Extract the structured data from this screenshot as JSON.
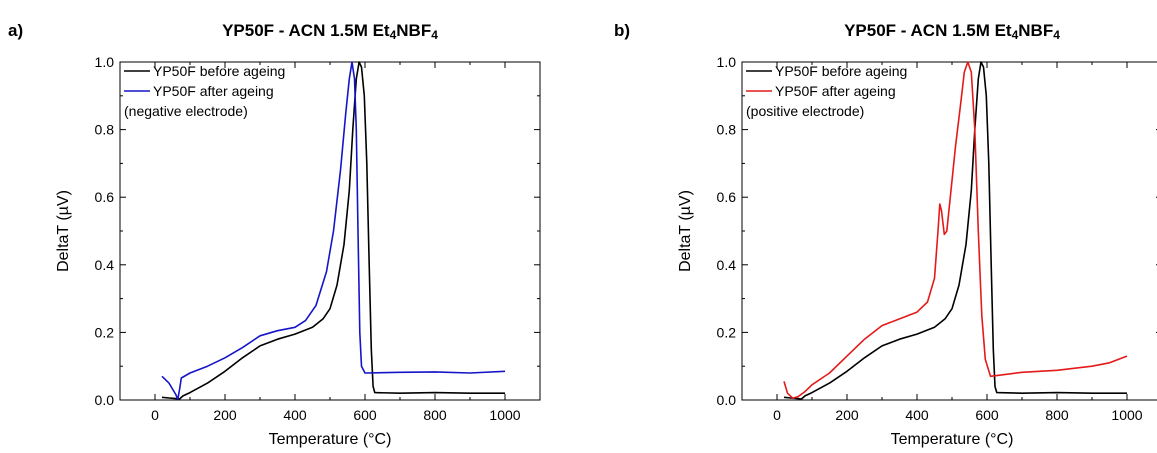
{
  "chart_data": [
    {
      "type": "line",
      "panel_label": "a)",
      "title": "YP50F - ACN 1.5M Et4NBF4",
      "title_parts": [
        {
          "text": "YP50F - ACN 1.5M Et",
          "sub": false
        },
        {
          "text": "4",
          "sub": true
        },
        {
          "text": "NBF",
          "sub": false
        },
        {
          "text": "4",
          "sub": true
        }
      ],
      "xlabel": "Temperature (°C)",
      "ylabel": "DeltaT (µV)",
      "xlim": [
        -100,
        1100
      ],
      "ylim": [
        0,
        1.0
      ],
      "xticks": [
        0,
        200,
        400,
        600,
        800,
        1000
      ],
      "yticks": [
        0.0,
        0.2,
        0.4,
        0.6,
        0.8,
        1.0
      ],
      "ytick_labels": [
        "0.0",
        "0.2",
        "0.4",
        "0.6",
        "0.8",
        "1.0"
      ],
      "legend_position": "top-left",
      "legend_note": "(negative electrode)",
      "grid": false,
      "series": [
        {
          "name": "YP50F before ageing",
          "color": "#000000",
          "points": [
            [
              20,
              0.008
            ],
            [
              40,
              0.006
            ],
            [
              60,
              0.004
            ],
            [
              70,
              0.003
            ],
            [
              80,
              0.012
            ],
            [
              100,
              0.022
            ],
            [
              150,
              0.05
            ],
            [
              200,
              0.085
            ],
            [
              250,
              0.125
            ],
            [
              300,
              0.16
            ],
            [
              350,
              0.18
            ],
            [
              400,
              0.195
            ],
            [
              450,
              0.215
            ],
            [
              480,
              0.24
            ],
            [
              500,
              0.27
            ],
            [
              520,
              0.34
            ],
            [
              540,
              0.46
            ],
            [
              555,
              0.62
            ],
            [
              565,
              0.8
            ],
            [
              575,
              0.95
            ],
            [
              583,
              1.0
            ],
            [
              590,
              0.985
            ],
            [
              598,
              0.9
            ],
            [
              605,
              0.7
            ],
            [
              612,
              0.4
            ],
            [
              618,
              0.15
            ],
            [
              623,
              0.04
            ],
            [
              628,
              0.022
            ],
            [
              700,
              0.02
            ],
            [
              800,
              0.022
            ],
            [
              900,
              0.02
            ],
            [
              1000,
              0.02
            ]
          ]
        },
        {
          "name": "YP50F after ageing",
          "color": "#1515c8",
          "points": [
            [
              20,
              0.07
            ],
            [
              40,
              0.05
            ],
            [
              60,
              0.015
            ],
            [
              65,
              0.002
            ],
            [
              70,
              0.03
            ],
            [
              75,
              0.065
            ],
            [
              100,
              0.08
            ],
            [
              150,
              0.1
            ],
            [
              200,
              0.125
            ],
            [
              250,
              0.155
            ],
            [
              300,
              0.19
            ],
            [
              350,
              0.205
            ],
            [
              400,
              0.215
            ],
            [
              430,
              0.235
            ],
            [
              460,
              0.28
            ],
            [
              490,
              0.38
            ],
            [
              510,
              0.5
            ],
            [
              530,
              0.68
            ],
            [
              545,
              0.85
            ],
            [
              555,
              0.95
            ],
            [
              563,
              1.0
            ],
            [
              570,
              0.95
            ],
            [
              575,
              0.8
            ],
            [
              580,
              0.5
            ],
            [
              585,
              0.2
            ],
            [
              590,
              0.1
            ],
            [
              600,
              0.08
            ],
            [
              700,
              0.082
            ],
            [
              800,
              0.083
            ],
            [
              900,
              0.08
            ],
            [
              1000,
              0.085
            ]
          ]
        }
      ]
    },
    {
      "type": "line",
      "panel_label": "b)",
      "title": "YP50F - ACN 1.5M Et4NBF4",
      "title_parts": [
        {
          "text": "YP50F - ACN 1.5M Et",
          "sub": false
        },
        {
          "text": "4",
          "sub": true
        },
        {
          "text": "NBF",
          "sub": false
        },
        {
          "text": "4",
          "sub": true
        }
      ],
      "xlabel": "Temperature (°C)",
      "ylabel": "DeltaT (µV)",
      "xlim": [
        -100,
        1100
      ],
      "ylim": [
        0,
        1.0
      ],
      "xticks": [
        0,
        200,
        400,
        600,
        800,
        1000
      ],
      "yticks": [
        0.0,
        0.2,
        0.4,
        0.6,
        0.8,
        1.0
      ],
      "ytick_labels": [
        "0.0",
        "0.2",
        "0.4",
        "0.6",
        "0.8",
        "1.0"
      ],
      "legend_position": "top-left",
      "legend_note": "(positive electrode)",
      "grid": false,
      "series": [
        {
          "name": "YP50F before ageing",
          "color": "#000000",
          "points": [
            [
              20,
              0.008
            ],
            [
              40,
              0.006
            ],
            [
              60,
              0.004
            ],
            [
              70,
              0.003
            ],
            [
              80,
              0.012
            ],
            [
              100,
              0.022
            ],
            [
              150,
              0.05
            ],
            [
              200,
              0.085
            ],
            [
              250,
              0.125
            ],
            [
              300,
              0.16
            ],
            [
              350,
              0.18
            ],
            [
              400,
              0.195
            ],
            [
              450,
              0.215
            ],
            [
              480,
              0.24
            ],
            [
              500,
              0.27
            ],
            [
              520,
              0.34
            ],
            [
              540,
              0.46
            ],
            [
              555,
              0.62
            ],
            [
              565,
              0.8
            ],
            [
              575,
              0.95
            ],
            [
              583,
              1.0
            ],
            [
              590,
              0.985
            ],
            [
              598,
              0.9
            ],
            [
              605,
              0.7
            ],
            [
              612,
              0.4
            ],
            [
              618,
              0.15
            ],
            [
              623,
              0.04
            ],
            [
              628,
              0.022
            ],
            [
              700,
              0.02
            ],
            [
              800,
              0.022
            ],
            [
              900,
              0.02
            ],
            [
              1000,
              0.02
            ]
          ]
        },
        {
          "name": "YP50F after ageing",
          "color": "#e41a1a",
          "points": [
            [
              20,
              0.055
            ],
            [
              30,
              0.02
            ],
            [
              45,
              0.005
            ],
            [
              60,
              0.01
            ],
            [
              80,
              0.025
            ],
            [
              100,
              0.045
            ],
            [
              150,
              0.08
            ],
            [
              200,
              0.13
            ],
            [
              250,
              0.18
            ],
            [
              300,
              0.22
            ],
            [
              350,
              0.24
            ],
            [
              400,
              0.26
            ],
            [
              430,
              0.29
            ],
            [
              450,
              0.36
            ],
            [
              460,
              0.5
            ],
            [
              465,
              0.58
            ],
            [
              470,
              0.56
            ],
            [
              478,
              0.49
            ],
            [
              485,
              0.5
            ],
            [
              495,
              0.6
            ],
            [
              510,
              0.75
            ],
            [
              525,
              0.88
            ],
            [
              535,
              0.97
            ],
            [
              545,
              1.0
            ],
            [
              555,
              0.97
            ],
            [
              565,
              0.8
            ],
            [
              575,
              0.5
            ],
            [
              585,
              0.25
            ],
            [
              595,
              0.12
            ],
            [
              610,
              0.07
            ],
            [
              650,
              0.075
            ],
            [
              700,
              0.082
            ],
            [
              800,
              0.088
            ],
            [
              900,
              0.1
            ],
            [
              950,
              0.11
            ],
            [
              1000,
              0.13
            ]
          ]
        }
      ]
    }
  ]
}
